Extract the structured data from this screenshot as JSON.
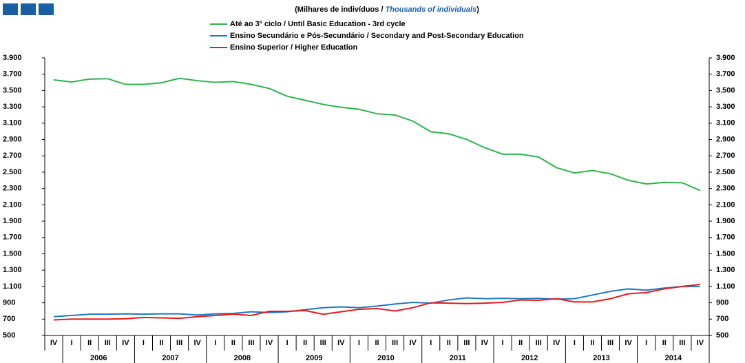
{
  "chart_data": {
    "type": "line",
    "subtitle": {
      "pt": "(Milhares de indivíduos /",
      "en": "Thousands of individuals",
      "close": ")"
    },
    "categories": [
      "IV",
      "I",
      "II",
      "III",
      "IV",
      "I",
      "II",
      "III",
      "IV",
      "I",
      "II",
      "III",
      "IV",
      "I",
      "II",
      "III",
      "IV",
      "I",
      "II",
      "III",
      "IV",
      "I",
      "II",
      "III",
      "IV",
      "I",
      "II",
      "III",
      "IV",
      "I",
      "II",
      "III",
      "IV",
      "I",
      "II",
      "III",
      "IV"
    ],
    "year_groups": [
      "2006",
      "2007",
      "2008",
      "2009",
      "2010",
      "2011",
      "2012",
      "2013",
      "2014"
    ],
    "series": [
      {
        "name": "Até ao 3º ciclo / Until Basic Education - 3rd cycle",
        "color": "#2db34a",
        "values": [
          3630,
          3605,
          3640,
          3645,
          3575,
          3575,
          3595,
          3650,
          3620,
          3600,
          3610,
          3575,
          3525,
          3430,
          3380,
          3330,
          3295,
          3270,
          3215,
          3200,
          3125,
          2995,
          2970,
          2900,
          2800,
          2720,
          2720,
          2685,
          2555,
          2490,
          2520,
          2480,
          2400,
          2355,
          2375,
          2370,
          2275
        ]
      },
      {
        "name": "Ensino Secundário e Pós-Secundário / Secondary and Post-Secondary Education",
        "color": "#1f77c4",
        "values": [
          730,
          745,
          760,
          760,
          765,
          760,
          765,
          765,
          750,
          765,
          770,
          790,
          780,
          790,
          815,
          840,
          850,
          840,
          860,
          885,
          905,
          895,
          935,
          960,
          950,
          955,
          950,
          955,
          945,
          950,
          995,
          1040,
          1070,
          1055,
          1080,
          1100,
          1100
        ]
      },
      {
        "name": "Ensino Superior / Higher Education",
        "color": "#e8191b",
        "values": [
          690,
          700,
          700,
          700,
          705,
          720,
          715,
          710,
          730,
          745,
          760,
          745,
          795,
          795,
          805,
          760,
          790,
          820,
          830,
          800,
          840,
          900,
          895,
          890,
          895,
          905,
          935,
          930,
          950,
          910,
          910,
          950,
          1010,
          1025,
          1070,
          1100,
          1125
        ]
      }
    ],
    "ylim": [
      500,
      3900
    ],
    "yticks": [
      500,
      700,
      900,
      {
        "value": 1100,
        "label": "1.100"
      },
      {
        "value": 1300,
        "label": "1.300"
      },
      {
        "value": 1500,
        "label": "1.500"
      },
      {
        "value": 1700,
        "label": "1.700"
      },
      {
        "value": 1900,
        "label": "1.900"
      },
      {
        "value": 2100,
        "label": "2.100"
      },
      {
        "value": 2300,
        "label": "2.300"
      },
      {
        "value": 2500,
        "label": "2.500"
      },
      {
        "value": 2700,
        "label": "2.700"
      },
      {
        "value": 2900,
        "label": "2.900"
      },
      {
        "value": 3100,
        "label": "3.100"
      },
      {
        "value": 3300,
        "label": "3.300"
      },
      {
        "value": 3500,
        "label": "3.500"
      },
      {
        "value": 3700,
        "label": "3.700"
      },
      {
        "value": 3900,
        "label": "3.900"
      }
    ],
    "y2lim": [
      500,
      3900
    ],
    "y2ticks": [
      500,
      700,
      900,
      {
        "value": 1100,
        "label": "1.100"
      },
      {
        "value": 1300,
        "label": "1.300"
      },
      {
        "value": 1500,
        "label": "1.500"
      },
      {
        "value": 1700,
        "label": "1.700"
      },
      {
        "value": 1900,
        "label": "1.900"
      },
      {
        "value": 2100,
        "label": "2.100"
      },
      {
        "value": 2300,
        "label": "2.300"
      },
      {
        "value": 2500,
        "label": "2.500"
      },
      {
        "value": 2700,
        "label": "2.700"
      },
      {
        "value": 2900,
        "label": "2.900"
      },
      {
        "value": 3100,
        "label": "3.100"
      },
      {
        "value": 3300,
        "label": "3.300"
      },
      {
        "value": 3500,
        "label": "3.500"
      },
      {
        "value": 3700,
        "label": "3.700"
      },
      {
        "value": 3900,
        "label": "3.900"
      }
    ],
    "grid": false
  }
}
